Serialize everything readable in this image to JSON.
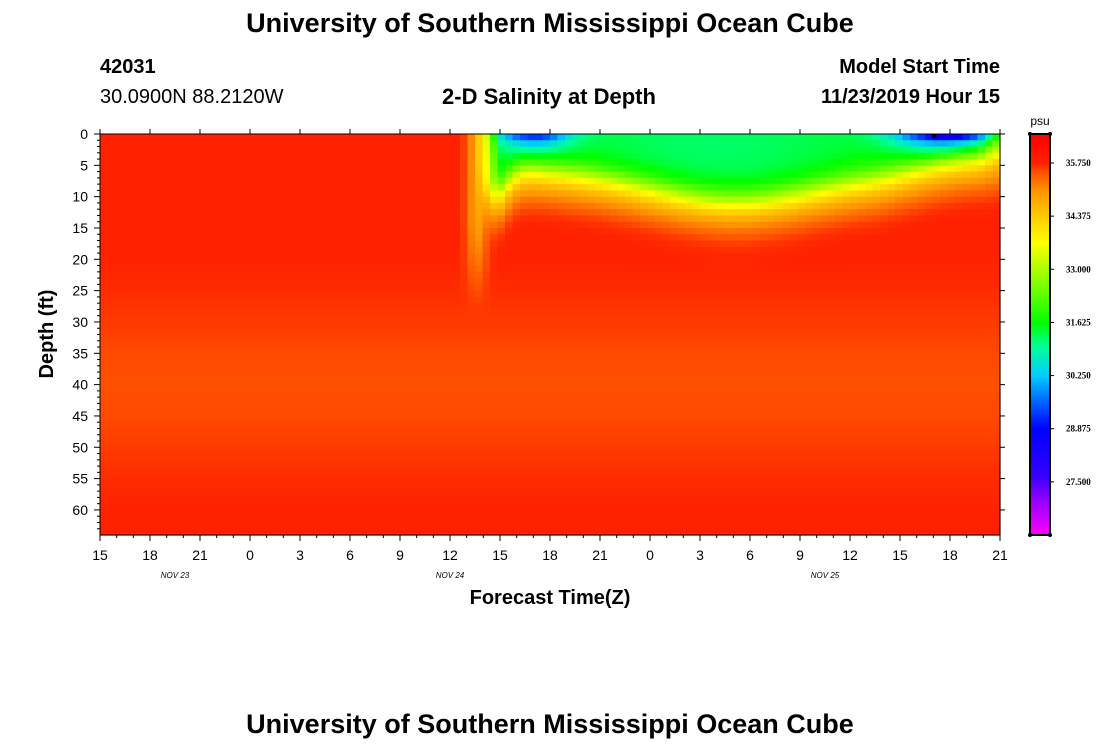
{
  "page": {
    "title_top": "University of Southern Mississippi Ocean Cube",
    "title_bottom": "University of Southern Mississippi Ocean Cube",
    "station_id": "42031",
    "station_coords": "30.0900N 88.2120W",
    "plot_title": "2-D Salinity at Depth",
    "model_start_label": "Model Start Time",
    "model_start_value": "11/23/2019 Hour 15"
  },
  "chart_data": {
    "type": "heatmap",
    "title": "2-D Salinity at Depth",
    "xlabel": "Forecast Time(Z)",
    "ylabel": "Depth (ft)",
    "x_ticks": [
      "15",
      "18",
      "21",
      "0",
      "3",
      "6",
      "9",
      "12",
      "15",
      "18",
      "21",
      "0",
      "3",
      "6",
      "9",
      "12",
      "15",
      "18",
      "21"
    ],
    "date_labels": [
      {
        "text": "NOV  23",
        "tick_index": 1.5
      },
      {
        "text": "NOV  24",
        "tick_index": 7
      },
      {
        "text": "NOV  25",
        "tick_index": 14.5
      }
    ],
    "x_range_hours": [
      0,
      54
    ],
    "y_ticks": [
      0,
      5,
      10,
      15,
      20,
      25,
      30,
      35,
      40,
      45,
      50,
      55,
      60
    ],
    "ylim": [
      0,
      64
    ],
    "y_inverted": true,
    "colorbar": {
      "unit": "psu",
      "min": 26.125,
      "max": 36.5,
      "labels": [
        "35.750",
        "34.375",
        "33.000",
        "31.625",
        "30.250",
        "28.875",
        "27.500"
      ],
      "colors": [
        [
          26.125,
          "#ff00ff"
        ],
        [
          27.0,
          "#9900ff"
        ],
        [
          27.7,
          "#3300ff"
        ],
        [
          28.875,
          "#0000ff"
        ],
        [
          29.6,
          "#0066ff"
        ],
        [
          30.25,
          "#00ccff"
        ],
        [
          31.0,
          "#00ff99"
        ],
        [
          31.625,
          "#00ff00"
        ],
        [
          32.4,
          "#66ff00"
        ],
        [
          33.0,
          "#aaff00"
        ],
        [
          33.7,
          "#ffff00"
        ],
        [
          34.375,
          "#ffcc00"
        ],
        [
          35.0,
          "#ff9900"
        ],
        [
          35.5,
          "#ff5500"
        ],
        [
          35.75,
          "#ff2200"
        ],
        [
          36.5,
          "#ff0000"
        ]
      ]
    },
    "background_salinity": 35.78,
    "features": [
      {
        "description": "fresh surface wedge (arriving Nov 24 ~14Z)",
        "hour_start": 22.5,
        "hour_end": 54,
        "surface_min_psu": 28.5,
        "bottom_depth_ft": 12
      },
      {
        "description": "second fresh pulse Nov 25 ~15-18Z",
        "hour_center": 50,
        "hour_halfwidth": 4,
        "surface_min_psu": 27.2
      }
    ]
  }
}
